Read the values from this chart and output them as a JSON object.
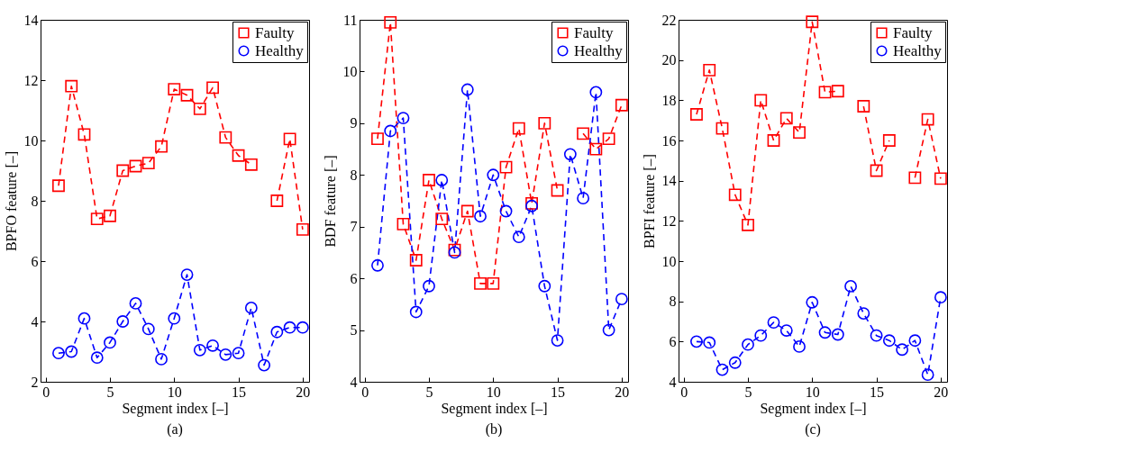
{
  "chart_data": [
    {
      "type": "line",
      "xlabel": "Segment index [–]",
      "ylabel": "BPFO feature [–]",
      "annotations": [
        "(a)"
      ],
      "x": [
        1,
        2,
        3,
        4,
        5,
        6,
        7,
        8,
        9,
        10,
        11,
        12,
        13,
        14,
        15,
        16,
        17,
        18,
        19,
        20
      ],
      "xlim": [
        -0.4,
        20.5
      ],
      "xticks": [
        0,
        5,
        10,
        15,
        20
      ],
      "ylim": [
        2,
        14
      ],
      "yticks": [
        2,
        4,
        6,
        8,
        10,
        12,
        14
      ],
      "grid": false,
      "legend": "top right",
      "line_style": "dashed",
      "series": [
        {
          "name": "Faulty",
          "color": "#ff0000",
          "marker": "square",
          "values": [
            8.5,
            11.8,
            10.2,
            7.4,
            7.5,
            9.0,
            9.15,
            9.25,
            9.8,
            11.7,
            11.5,
            11.05,
            11.75,
            10.1,
            9.5,
            9.2,
            null,
            8.0,
            10.05,
            7.05
          ]
        },
        {
          "name": "Healthy",
          "color": "#0000ff",
          "marker": "circle",
          "values": [
            2.95,
            3.0,
            4.1,
            2.8,
            3.3,
            4.0,
            4.6,
            3.75,
            2.75,
            4.1,
            5.55,
            3.05,
            3.2,
            2.9,
            2.95,
            4.45,
            2.55,
            3.65,
            3.8,
            3.8
          ]
        }
      ]
    },
    {
      "type": "line",
      "xlabel": "Segment index [–]",
      "ylabel": "BDF feature [–]",
      "annotations": [
        "(b)"
      ],
      "x": [
        1,
        2,
        3,
        4,
        5,
        6,
        7,
        8,
        9,
        10,
        11,
        12,
        13,
        14,
        15,
        16,
        17,
        18,
        19,
        20
      ],
      "xlim": [
        -0.4,
        20.5
      ],
      "xticks": [
        0,
        5,
        10,
        15,
        20
      ],
      "ylim": [
        4,
        11
      ],
      "yticks": [
        4,
        5,
        6,
        7,
        8,
        9,
        10,
        11
      ],
      "grid": false,
      "legend": "top right",
      "line_style": "dashed",
      "series": [
        {
          "name": "Faulty",
          "color": "#ff0000",
          "marker": "square",
          "values": [
            8.7,
            10.95,
            7.05,
            6.35,
            7.9,
            7.15,
            6.55,
            7.3,
            5.9,
            5.9,
            8.15,
            8.9,
            7.45,
            9.0,
            7.7,
            null,
            8.8,
            8.5,
            8.7,
            9.35
          ]
        },
        {
          "name": "Healthy",
          "color": "#0000ff",
          "marker": "circle",
          "values": [
            6.25,
            8.85,
            9.1,
            5.35,
            5.85,
            7.9,
            6.5,
            9.65,
            7.2,
            8.0,
            7.3,
            6.8,
            7.4,
            5.85,
            4.8,
            8.4,
            7.55,
            9.6,
            5.0,
            5.6
          ]
        }
      ]
    },
    {
      "type": "line",
      "xlabel": "Segment index [–]",
      "ylabel": "BPFI feature [–]",
      "annotations": [
        "(c)"
      ],
      "x": [
        1,
        2,
        3,
        4,
        5,
        6,
        7,
        8,
        9,
        10,
        11,
        12,
        13,
        14,
        15,
        16,
        17,
        18,
        19,
        20
      ],
      "xlim": [
        -0.4,
        20.5
      ],
      "xticks": [
        0,
        5,
        10,
        15,
        20
      ],
      "ylim": [
        4,
        22
      ],
      "yticks": [
        4,
        6,
        8,
        10,
        12,
        14,
        16,
        18,
        20,
        22
      ],
      "grid": false,
      "legend": "top right",
      "line_style": "dashed",
      "series": [
        {
          "name": "Faulty",
          "color": "#ff0000",
          "marker": "square",
          "values": [
            17.3,
            19.5,
            16.6,
            13.3,
            11.8,
            18.0,
            16.0,
            17.1,
            16.4,
            21.9,
            18.4,
            18.45,
            null,
            17.7,
            14.5,
            16.0,
            null,
            14.15,
            17.05,
            14.1
          ]
        },
        {
          "name": "Healthy",
          "color": "#0000ff",
          "marker": "circle",
          "values": [
            6.0,
            5.95,
            4.6,
            4.95,
            5.85,
            6.3,
            6.95,
            6.55,
            5.75,
            7.95,
            6.45,
            6.35,
            8.75,
            7.4,
            6.3,
            6.05,
            5.6,
            6.05,
            4.35,
            8.2
          ]
        }
      ]
    }
  ]
}
